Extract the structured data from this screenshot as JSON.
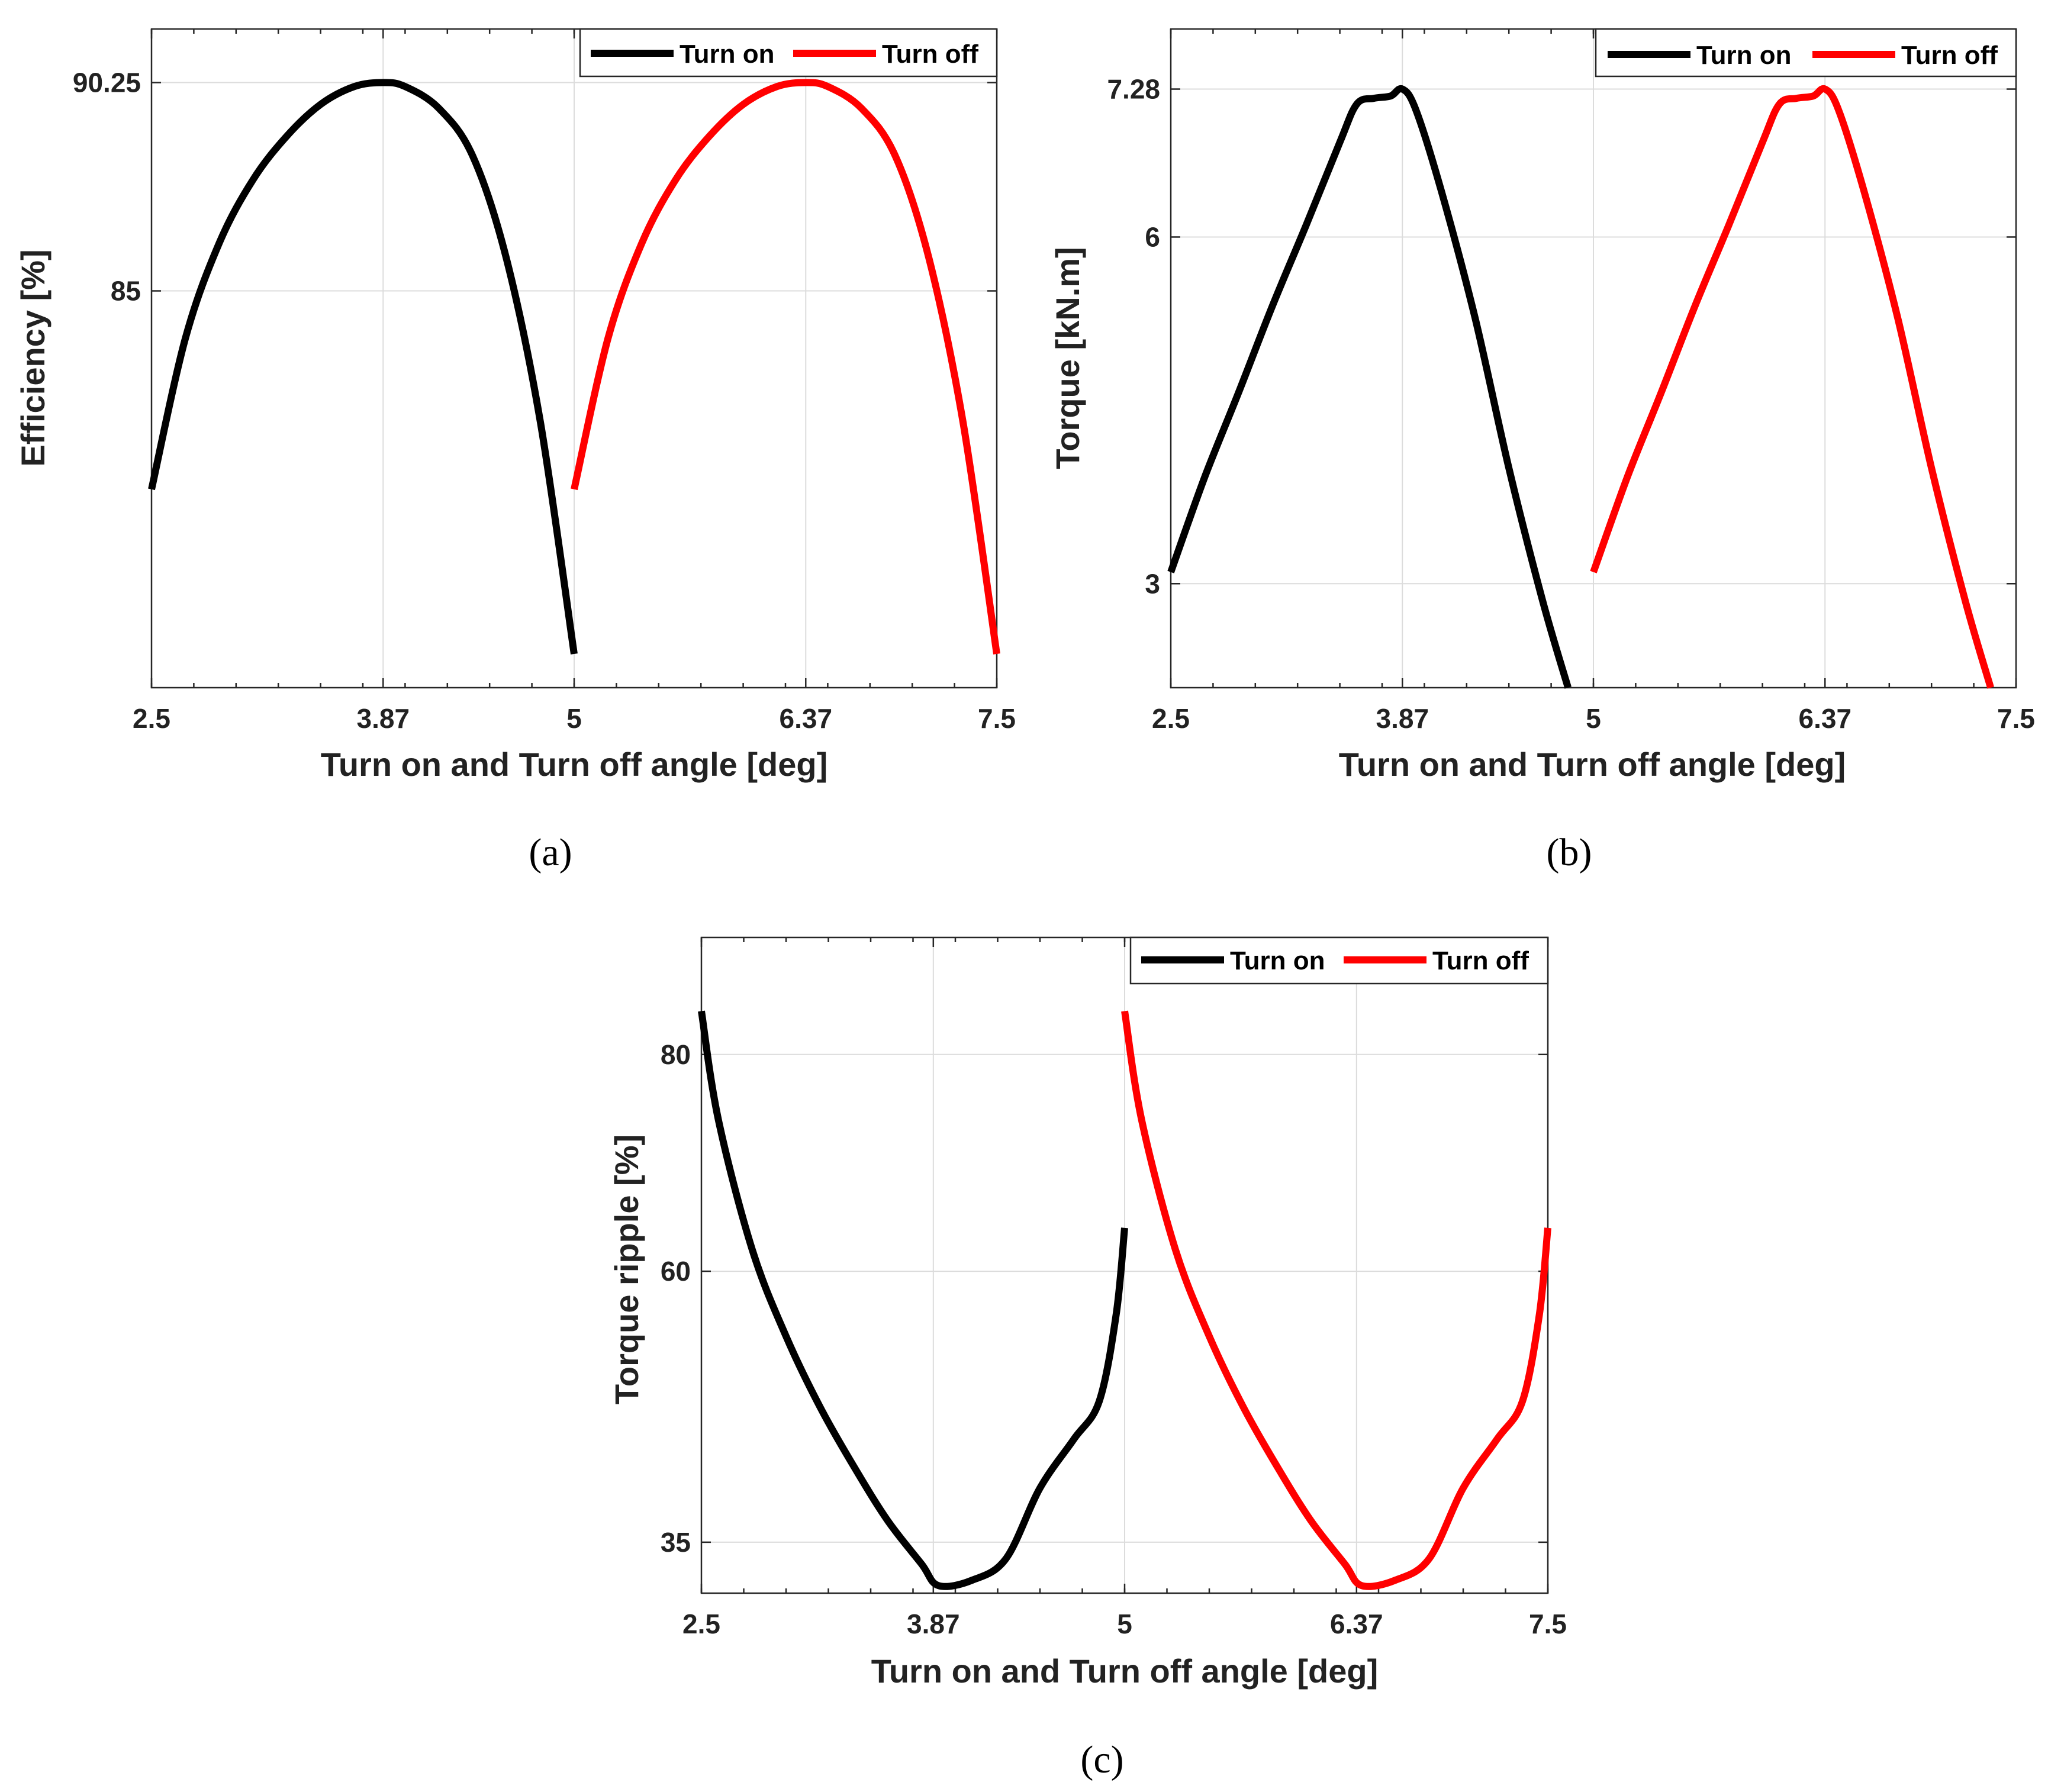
{
  "colors": {
    "turn_on": "#000000",
    "turn_off": "#ff0000"
  },
  "chart_data": [
    {
      "type": "line",
      "caption": "(a)",
      "title": "",
      "xlabel": "Turn on  and Turn off angle [deg]",
      "ylabel": "Efficiency [%]",
      "xlim": [
        2.5,
        7.5
      ],
      "ylim": [
        75.0,
        91.6
      ],
      "xticks": [
        2.5,
        3.87,
        5,
        6.37,
        7.5
      ],
      "xtick_labels": [
        "2.5",
        "3.87",
        "5",
        "6.37",
        "7.5"
      ],
      "yticks": [
        85,
        90.25
      ],
      "ytick_labels": [
        "85",
        "90.25"
      ],
      "grid": true,
      "legend_position": "top-right",
      "series": [
        {
          "name": "Turn on",
          "color": "#000000",
          "x": [
            2.5,
            2.7,
            2.9,
            3.1,
            3.3,
            3.5,
            3.7,
            3.87,
            4.0,
            4.2,
            4.4,
            4.6,
            4.8,
            5.0
          ],
          "y": [
            80.0,
            83.8,
            86.2,
            87.8,
            88.9,
            89.7,
            90.15,
            90.25,
            90.15,
            89.6,
            88.4,
            85.8,
            81.7,
            75.85
          ]
        },
        {
          "name": "Turn off",
          "color": "#ff0000",
          "x": [
            5.0,
            5.2,
            5.4,
            5.6,
            5.8,
            6.0,
            6.2,
            6.37,
            6.5,
            6.7,
            6.9,
            7.1,
            7.3,
            7.5
          ],
          "y": [
            80.0,
            83.8,
            86.2,
            87.8,
            88.9,
            89.7,
            90.15,
            90.25,
            90.15,
            89.6,
            88.4,
            85.8,
            81.7,
            75.85
          ]
        }
      ]
    },
    {
      "type": "line",
      "caption": "(b)",
      "title": "",
      "xlabel": "Turn on  and Turn off angle [deg]",
      "ylabel": "Torque [kN.m]",
      "xlim": [
        2.5,
        7.5
      ],
      "ylim": [
        2.1,
        7.8
      ],
      "xticks": [
        2.5,
        3.87,
        5,
        6.37,
        7.5
      ],
      "xtick_labels": [
        "2.5",
        "3.87",
        "5",
        "6.37",
        "7.5"
      ],
      "yticks": [
        3,
        6,
        7.28
      ],
      "ytick_labels": [
        "3",
        "6",
        "7.28"
      ],
      "grid": true,
      "legend_position": "top-right",
      "series": [
        {
          "name": "Turn on",
          "color": "#000000",
          "x": [
            2.5,
            2.7,
            2.9,
            3.1,
            3.3,
            3.5,
            3.6,
            3.7,
            3.8,
            3.87,
            3.95,
            4.1,
            4.3,
            4.5,
            4.7,
            4.85
          ],
          "y": [
            3.1,
            3.92,
            4.65,
            5.4,
            6.1,
            6.82,
            7.15,
            7.2,
            7.22,
            7.28,
            7.1,
            6.4,
            5.3,
            4.0,
            2.85,
            2.1
          ]
        },
        {
          "name": "Turn off",
          "color": "#ff0000",
          "x": [
            5.0,
            5.2,
            5.4,
            5.6,
            5.8,
            6.0,
            6.1,
            6.2,
            6.3,
            6.37,
            6.45,
            6.6,
            6.8,
            7.0,
            7.2,
            7.35
          ],
          "y": [
            3.1,
            3.92,
            4.65,
            5.4,
            6.1,
            6.82,
            7.15,
            7.2,
            7.22,
            7.28,
            7.1,
            6.4,
            5.3,
            4.0,
            2.85,
            2.1
          ]
        }
      ]
    },
    {
      "type": "line",
      "caption": "(c)",
      "title": "",
      "xlabel": "Turn on  and Turn off angle [deg]",
      "ylabel": "Torque ripple [%]",
      "xlim": [
        2.5,
        7.5
      ],
      "ylim": [
        30.3,
        90.8
      ],
      "xticks": [
        2.5,
        3.87,
        5,
        6.37,
        7.5
      ],
      "xtick_labels": [
        "2.5",
        "3.87",
        "5",
        "6.37",
        "7.5"
      ],
      "yticks": [
        35,
        60,
        80
      ],
      "ytick_labels": [
        "35",
        "60",
        "80"
      ],
      "grid": true,
      "legend_position": "top-right",
      "series": [
        {
          "name": "Turn on",
          "color": "#000000",
          "x": [
            2.5,
            2.6,
            2.8,
            3.0,
            3.2,
            3.4,
            3.6,
            3.8,
            3.9,
            4.1,
            4.3,
            4.5,
            4.7,
            4.85,
            4.95,
            5.0
          ],
          "y": [
            84.0,
            74.0,
            62.0,
            54.0,
            47.5,
            42.0,
            37.0,
            33.0,
            31.0,
            31.5,
            33.5,
            40.0,
            44.5,
            48.0,
            56.0,
            64.0
          ]
        },
        {
          "name": "Turn off",
          "color": "#ff0000",
          "x": [
            5.0,
            5.1,
            5.3,
            5.5,
            5.7,
            5.9,
            6.1,
            6.3,
            6.4,
            6.6,
            6.8,
            7.0,
            7.2,
            7.35,
            7.45,
            7.5
          ],
          "y": [
            84.0,
            74.0,
            62.0,
            54.0,
            47.5,
            42.0,
            37.0,
            33.0,
            31.0,
            31.5,
            33.5,
            40.0,
            44.5,
            48.0,
            56.0,
            64.0
          ]
        }
      ]
    }
  ]
}
